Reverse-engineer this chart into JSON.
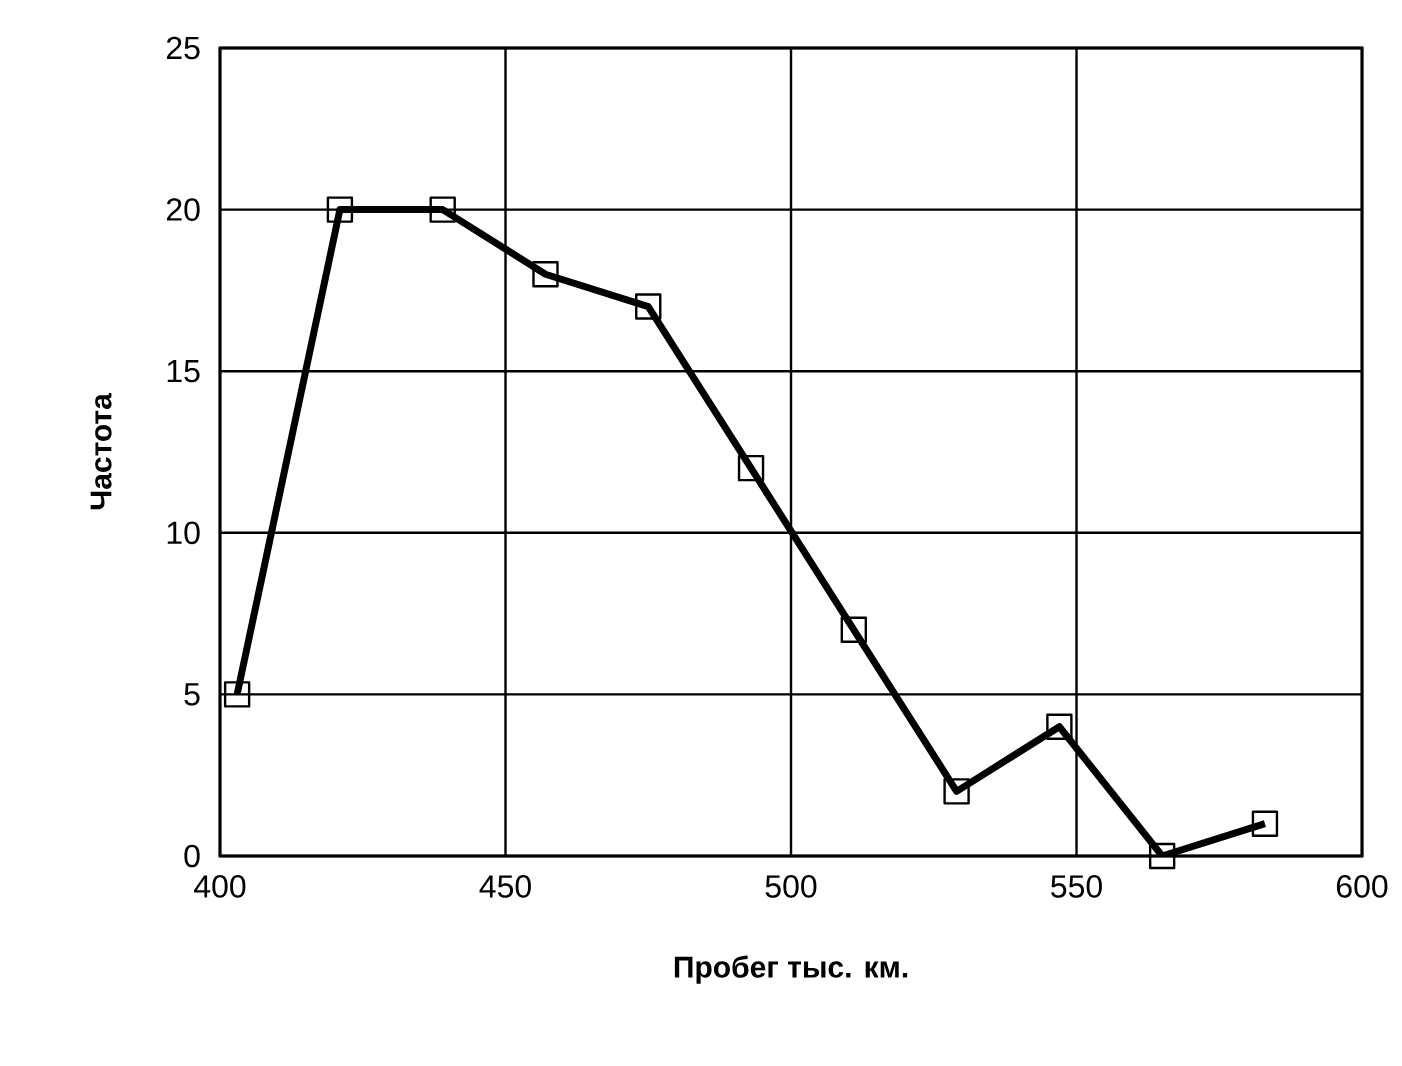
{
  "chart_data": {
    "type": "line",
    "xlabel": "Пробег тыс. км.",
    "ylabel": "Частота",
    "x": [
      403,
      421,
      439,
      457,
      475,
      493,
      511,
      529,
      547,
      565,
      583
    ],
    "series": [
      {
        "color": "#000000",
        "values": [
          5,
          20,
          20,
          18,
          17,
          12,
          7,
          2,
          4,
          0,
          1
        ]
      }
    ],
    "xlim": [
      400,
      600
    ],
    "xticks": [
      400,
      450,
      500,
      550,
      600
    ],
    "ylim": [
      0,
      25
    ],
    "yticks": [
      0,
      5,
      10,
      15,
      20,
      25
    ],
    "grid": true,
    "marker": "square",
    "line_style": "solid"
  }
}
